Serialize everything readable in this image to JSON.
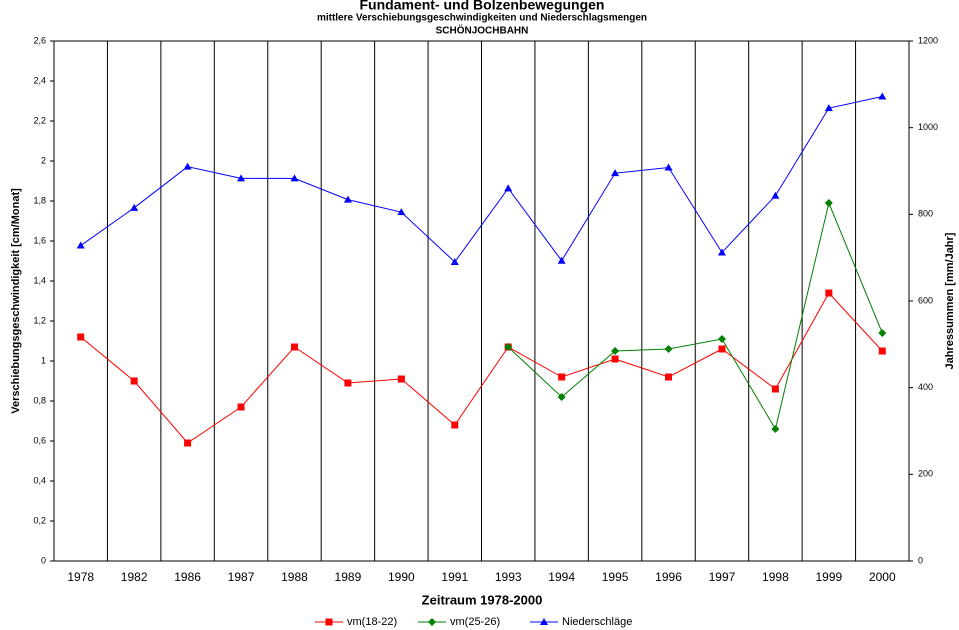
{
  "chart_data": {
    "type": "line",
    "title": "Fundament- und Bolzenbewegungen",
    "subtitle": "mittlere Verschiebungsgeschwindigkeiten und Niederschlagsmengen",
    "subtitle2": "SCHÖNJOCHBAHN",
    "xlabel": "Zeitraum 1978-2000",
    "ylabel": "Verschiebungsgeschwindigkeit [cm/Monat]",
    "y2label": "Jahressummen [mm/Jahr]",
    "categories": [
      "1978",
      "1982",
      "1986",
      "1987",
      "1988",
      "1989",
      "1990",
      "1991",
      "1993",
      "1994",
      "1995",
      "1996",
      "1997",
      "1998",
      "1999",
      "2000"
    ],
    "series": [
      {
        "name": "vm(18-22)",
        "color": "#ff0000",
        "marker": "square",
        "values": [
          1.12,
          0.9,
          0.59,
          0.77,
          1.07,
          0.89,
          0.91,
          0.68,
          1.07,
          0.92,
          1.01,
          0.92,
          1.06,
          0.86,
          1.34,
          1.05
        ]
      },
      {
        "name": "vm(25-26)",
        "color": "#008000",
        "marker": "diamond",
        "values": [
          null,
          null,
          null,
          null,
          null,
          null,
          null,
          null,
          1.07,
          0.82,
          1.05,
          1.06,
          1.11,
          0.66,
          1.79,
          1.14
        ]
      },
      {
        "name": "Niederschläge",
        "color": "#0000ff",
        "marker": "triangle",
        "axis": "y2",
        "values": [
          728,
          815,
          910,
          883,
          883,
          834,
          805,
          690,
          860,
          693,
          895,
          908,
          712,
          843,
          1045,
          1072
        ]
      }
    ],
    "ylim": [
      0,
      2.6
    ],
    "yticks": [
      0,
      {
        "value": 0.2,
        "label": "0,2"
      },
      {
        "value": 0.4,
        "label": "0,4"
      },
      {
        "value": 0.6,
        "label": "0,6"
      },
      {
        "value": 0.8,
        "label": "0,8"
      },
      1,
      {
        "value": 1.2,
        "label": "1,2"
      },
      {
        "value": 1.4,
        "label": "1,4"
      },
      {
        "value": 1.6,
        "label": "1,6"
      },
      {
        "value": 1.8,
        "label": "1,8"
      },
      2,
      {
        "value": 2.2,
        "label": "2,2"
      },
      {
        "value": 2.4,
        "label": "2,4"
      },
      {
        "value": 2.6,
        "label": "2,6"
      }
    ],
    "y2lim": [
      0,
      1200
    ],
    "y2ticks": [
      0,
      200,
      400,
      600,
      800,
      1000,
      1200
    ],
    "legend": "bottom"
  }
}
